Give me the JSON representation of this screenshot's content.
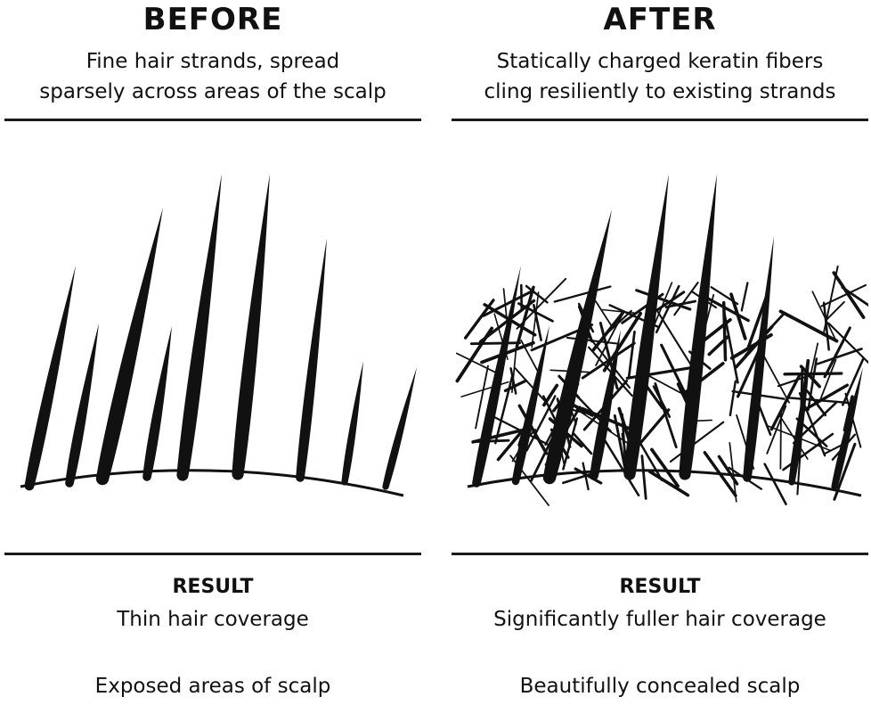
{
  "before": {
    "heading": "BEFORE",
    "description_lines": [
      "Fine hair strands, spread",
      "sparsely across areas of the scalp"
    ],
    "result_label": "RESULT",
    "result_lines": [
      "Thin hair coverage",
      "Exposed areas of scalp"
    ]
  },
  "after": {
    "heading": "AFTER",
    "description_lines": [
      "Statically charged keratin fibers",
      "cling resiliently to existing strands"
    ],
    "result_label": "RESULT",
    "result_lines": [
      "Significantly fuller hair coverage",
      "Beautifully concealed scalp"
    ]
  },
  "colors": {
    "ink": "#111111",
    "background": "#ffffff"
  }
}
